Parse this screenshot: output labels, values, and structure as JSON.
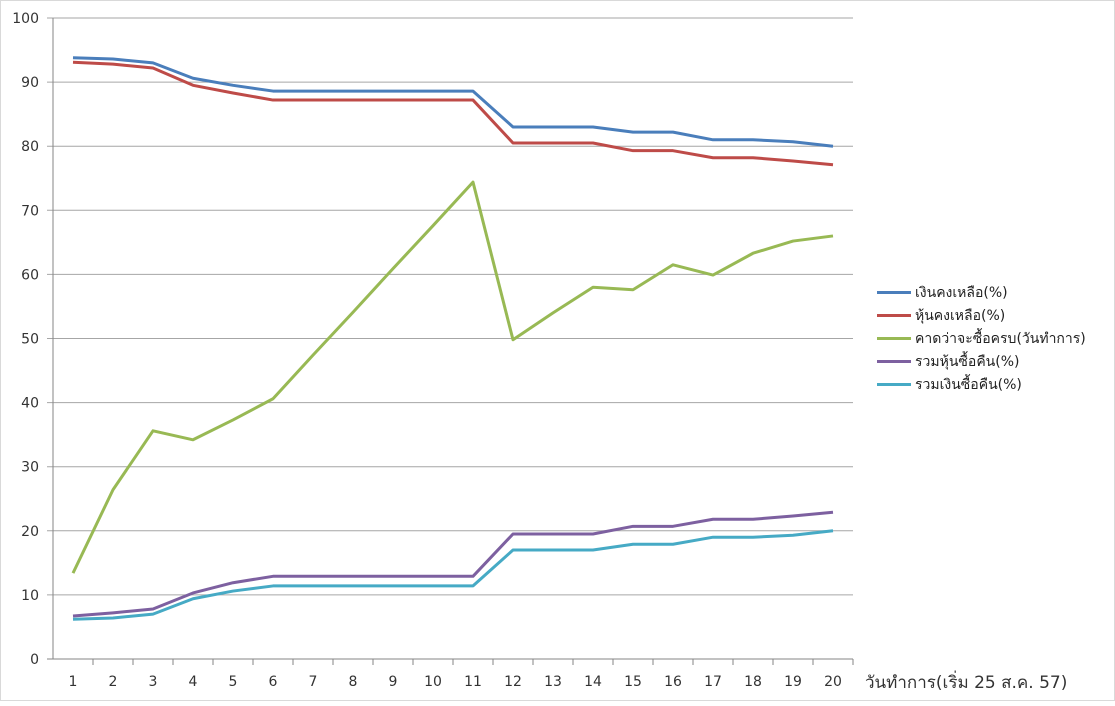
{
  "chart_data": {
    "type": "line",
    "title": "",
    "xlabel": "วันทำการ(เริ่ม 25 ส.ค. 57)",
    "ylabel": "",
    "ylim": [
      0,
      100
    ],
    "yticks": [
      0,
      10,
      20,
      30,
      40,
      50,
      60,
      70,
      80,
      90,
      100
    ],
    "grid": true,
    "legend_position": "right",
    "x": [
      1,
      2,
      3,
      4,
      5,
      6,
      7,
      8,
      9,
      10,
      11,
      12,
      13,
      14,
      15,
      16,
      17,
      18,
      19,
      20
    ],
    "series": [
      {
        "name": "เงินคงเหลือ(%)",
        "color": "#4a7ebb",
        "values": [
          93.8,
          93.6,
          93.0,
          90.6,
          89.5,
          88.6,
          88.6,
          88.6,
          88.6,
          88.6,
          88.6,
          83.0,
          83.0,
          83.0,
          82.2,
          82.2,
          81.0,
          81.0,
          80.7,
          80.0
        ]
      },
      {
        "name": "หุ้นคงเหลือ(%)",
        "color": "#be4b48",
        "values": [
          93.1,
          92.8,
          92.2,
          89.5,
          88.3,
          87.2,
          87.2,
          87.2,
          87.2,
          87.2,
          87.2,
          80.5,
          80.5,
          80.5,
          79.3,
          79.3,
          78.2,
          78.2,
          77.7,
          77.1
        ]
      },
      {
        "name": "คาดว่าจะซื้อครบ(วันทำการ)",
        "color": "#98b954",
        "values": [
          13.4,
          26.4,
          35.6,
          34.2,
          37.3,
          40.6,
          47.4,
          54.1,
          60.9,
          67.6,
          74.4,
          49.8,
          54.0,
          58.0,
          57.6,
          61.5,
          59.9,
          63.3,
          65.2,
          66.0
        ]
      },
      {
        "name": "รวมหุ้นซื้อคืน(%)",
        "color": "#7d60a0",
        "values": [
          6.7,
          7.2,
          7.8,
          10.3,
          11.9,
          12.9,
          12.9,
          12.9,
          12.9,
          12.9,
          12.9,
          19.5,
          19.5,
          19.5,
          20.7,
          20.7,
          21.8,
          21.8,
          22.3,
          22.9
        ]
      },
      {
        "name": "รวมเงินซื้อคืน(%)",
        "color": "#46aac5",
        "values": [
          6.2,
          6.4,
          7.0,
          9.4,
          10.6,
          11.4,
          11.4,
          11.4,
          11.4,
          11.4,
          11.4,
          17.0,
          17.0,
          17.0,
          17.9,
          17.9,
          19.0,
          19.0,
          19.3,
          20.0
        ]
      }
    ]
  }
}
